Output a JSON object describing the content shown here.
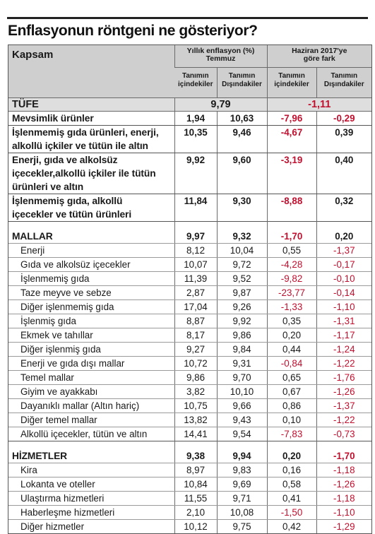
{
  "title": "Enflasyonun röntgeni ne gösteriyor?",
  "header": {
    "kapsam": "Kapsam",
    "group1_line1": "Yıllık enflasyon (%)",
    "group1_line2": "Temmuz",
    "group2_line1": "Haziran 2017'ye",
    "group2_line2": "göre fark",
    "sub_in_1": "Tanımın",
    "sub_in_2": "içindekiler",
    "sub_out_1": "Tanımın",
    "sub_out_2": "Dışındakiler",
    "sub_in2_1": "Tanımın",
    "sub_in2_2": "içindekiler",
    "sub_out2_1": "Tanımın",
    "sub_out2_2": "Dışındakiler"
  },
  "tufe": {
    "label": "TÜFE",
    "yillik": "9,79",
    "fark": "-1,11"
  },
  "core": [
    {
      "l1": "Mevsimlik ürünler",
      "l2": "",
      "l3": "",
      "a": "1,94",
      "b": "10,63",
      "c": "-7,96",
      "d": "-0,29"
    },
    {
      "l1": "İşlenmemiş gıda ürünleri, enerji,",
      "l2": "alkollü içkiler ve tütün ile altın",
      "l3": "",
      "a": "10,35",
      "b": "9,46",
      "c": "-4,67",
      "d": "0,39"
    },
    {
      "l1": "Enerji, gıda ve alkolsüz",
      "l2": "içecekler,alkollü içkiler ile tütün",
      "l3": "ürünleri ve altın",
      "a": "9,92",
      "b": "9,60",
      "c": "-3,19",
      "d": "0,40"
    },
    {
      "l1": "İşlenmemiş gıda, alkollü",
      "l2": "içecekler ve tütün ürünleri",
      "l3": "",
      "a": "11,84",
      "b": "9,30",
      "c": "-8,88",
      "d": "0,32"
    }
  ],
  "mallar": {
    "label": "MALLAR",
    "a": "9,97",
    "b": "9,32",
    "c": "-1,70",
    "d": "0,20",
    "items": [
      {
        "label": "Enerji",
        "a": "8,12",
        "b": "10,04",
        "c": "0,55",
        "d": "-1,37"
      },
      {
        "label": "Gıda ve alkolsüz içecekler",
        "a": "10,07",
        "b": "9,72",
        "c": "-4,28",
        "d": "-0,17"
      },
      {
        "label": "İşlenmemiş gıda",
        "a": "11,39",
        "b": "9,52",
        "c": "-9,82",
        "d": "-0,10"
      },
      {
        "label": "Taze meyve ve sebze",
        "a": "2,87",
        "b": "9,87",
        "c": "-23,77",
        "d": "-0,14"
      },
      {
        "label": "Diğer işlenmemiş gıda",
        "a": "17,04",
        "b": "9,26",
        "c": "-1,33",
        "d": "-1,10"
      },
      {
        "label": "İşlenmiş gıda",
        "a": "8,87",
        "b": "9,92",
        "c": "0,35",
        "d": "-1,31"
      },
      {
        "label": "Ekmek ve tahıllar",
        "a": "8,17",
        "b": "9,86",
        "c": "0,20",
        "d": "-1,17"
      },
      {
        "label": "Diğer işlenmiş gıda",
        "a": "9,27",
        "b": "9,84",
        "c": "0,44",
        "d": "-1,24"
      },
      {
        "label": "Enerji ve gıda dışı mallar",
        "a": "10,72",
        "b": "9,31",
        "c": "-0,84",
        "d": "-1,22"
      },
      {
        "label": "Temel mallar",
        "a": "9,86",
        "b": "9,70",
        "c": "0,65",
        "d": "-1,76"
      },
      {
        "label": "Giyim ve ayakkabı",
        "a": "3,82",
        "b": "10,10",
        "c": "0,67",
        "d": "-1,26"
      },
      {
        "label": "Dayanıklı mallar (Altın hariç)",
        "a": "10,75",
        "b": "9,66",
        "c": "0,86",
        "d": "-1,37"
      },
      {
        "label": "Diğer temel mallar",
        "a": "13,82",
        "b": "9,43",
        "c": "0,10",
        "d": "-1,22"
      },
      {
        "label": "Alkollü içecekler, tütün ve altın",
        "a": "14,41",
        "b": "9,54",
        "c": "-7,83",
        "d": "-0,73"
      }
    ]
  },
  "hizmetler": {
    "label": "HİZMETLER",
    "a": "9,38",
    "b": "9,94",
    "c": "0,20",
    "d": "-1,70",
    "items": [
      {
        "label": "Kira",
        "a": "8,97",
        "b": "9,83",
        "c": "0,16",
        "d": "-1,18"
      },
      {
        "label": "Lokanta ve oteller",
        "a": "10,84",
        "b": "9,69",
        "c": "0,58",
        "d": "-1,26"
      },
      {
        "label": "Ulaştırma hizmetleri",
        "a": "11,55",
        "b": "9,71",
        "c": "0,41",
        "d": "-1,18"
      },
      {
        "label": "Haberleşme hizmetleri",
        "a": "2,10",
        "b": "10,08",
        "c": "-1,50",
        "d": "-1,10"
      },
      {
        "label": "Diğer hizmetler",
        "a": "10,12",
        "b": "9,75",
        "c": "0,42",
        "d": "-1,29"
      }
    ]
  },
  "colors": {
    "negative": "#c0102f",
    "header_bg": "#cfcfcf",
    "tufe_bg": "#dedede"
  }
}
